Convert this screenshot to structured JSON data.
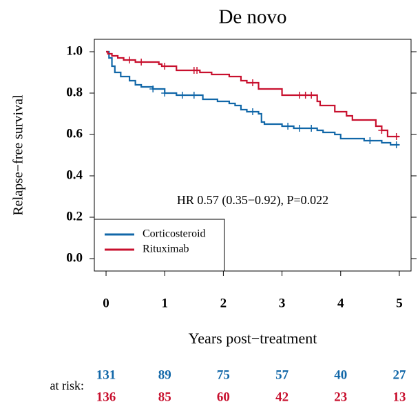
{
  "chart_data": {
    "type": "step",
    "title": "De novo",
    "x_label": "Years post−treatment",
    "y_label": "Relapse−free survival",
    "annotation": "HR 0.57 (0.35−0.92), P=0.022",
    "xlim": [
      -0.2,
      5.2
    ],
    "ylim": [
      -0.06,
      1.06
    ],
    "xticks": [
      0,
      1,
      2,
      3,
      4,
      5
    ],
    "yticks": [
      {
        "value": 0,
        "label": "0.0"
      },
      0.2,
      0.4,
      0.6,
      0.8,
      {
        "value": 1,
        "label": "1.0"
      }
    ],
    "legend": "lower left",
    "at_risk_label": "at risk:",
    "series": [
      {
        "name": "Corticosteroid",
        "color": "#1167a8",
        "x": [
          0,
          0.05,
          0.1,
          0.15,
          0.25,
          0.4,
          0.5,
          0.6,
          0.8,
          1.0,
          1.2,
          1.65,
          1.9,
          2.1,
          2.2,
          2.3,
          2.4,
          2.6,
          2.65,
          2.7,
          3.0,
          3.2,
          3.6,
          3.7,
          3.9,
          4.0,
          4.4,
          4.7,
          4.85,
          5.0
        ],
        "values": [
          1.0,
          0.97,
          0.93,
          0.9,
          0.88,
          0.86,
          0.84,
          0.83,
          0.82,
          0.8,
          0.79,
          0.77,
          0.76,
          0.75,
          0.74,
          0.72,
          0.71,
          0.7,
          0.66,
          0.65,
          0.64,
          0.63,
          0.62,
          0.61,
          0.6,
          0.58,
          0.57,
          0.56,
          0.55,
          0.55
        ],
        "censored": [
          0.8,
          1.0,
          1.3,
          1.5,
          2.5,
          3.1,
          3.3,
          3.5,
          4.5,
          4.95
        ],
        "at_risk": [
          131,
          89,
          75,
          57,
          40,
          27
        ]
      },
      {
        "name": "Rituximab",
        "color": "#c8102e",
        "x": [
          0,
          0.03,
          0.1,
          0.2,
          0.3,
          0.5,
          0.9,
          0.95,
          1.2,
          1.6,
          1.8,
          2.1,
          2.3,
          2.4,
          2.6,
          3.0,
          3.6,
          3.65,
          3.9,
          4.1,
          4.2,
          4.6,
          4.7,
          4.8,
          5.0
        ],
        "values": [
          1.0,
          0.99,
          0.98,
          0.97,
          0.96,
          0.95,
          0.94,
          0.93,
          0.91,
          0.9,
          0.89,
          0.88,
          0.86,
          0.85,
          0.82,
          0.79,
          0.76,
          0.74,
          0.71,
          0.69,
          0.67,
          0.64,
          0.62,
          0.59,
          0.59
        ],
        "censored": [
          0.4,
          0.6,
          1.0,
          1.5,
          1.55,
          2.5,
          3.3,
          3.4,
          3.5,
          4.7,
          4.95
        ],
        "at_risk": [
          136,
          85,
          60,
          42,
          23,
          13
        ]
      }
    ]
  }
}
